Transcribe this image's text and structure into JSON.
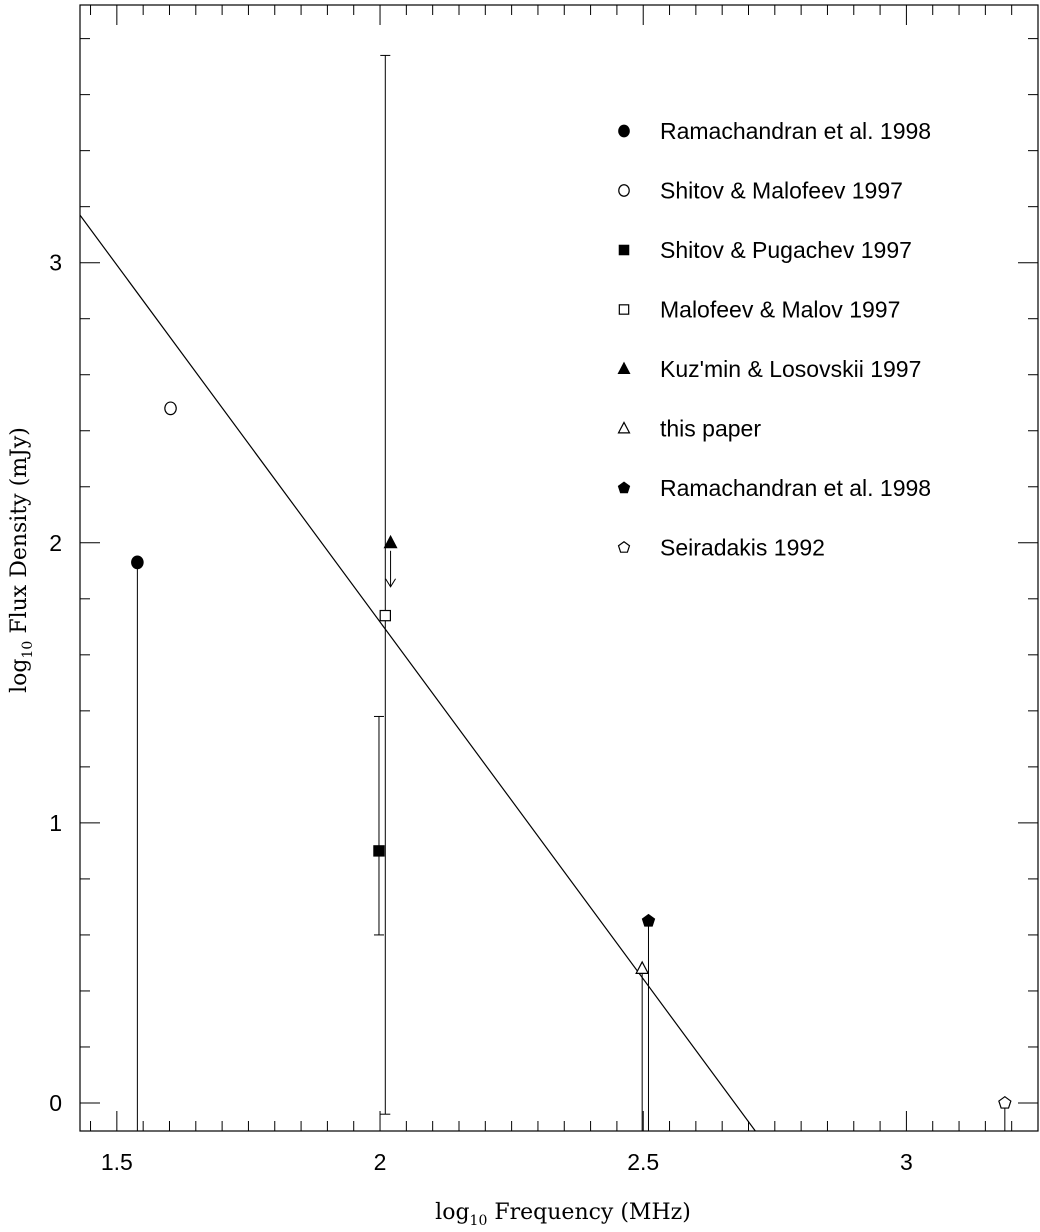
{
  "chart_data": {
    "type": "scatter",
    "xlabel": {
      "prefix": "log",
      "sub": "10",
      "rest": " Frequency (MHz)"
    },
    "ylabel": {
      "prefix": "log",
      "sub": "10",
      "rest": " Flux Density (mJy)"
    },
    "xlim": [
      1.43,
      3.25
    ],
    "ylim": [
      -0.1,
      3.92
    ],
    "xticks_major": [
      1.5,
      2,
      2.5,
      3
    ],
    "xtick_labels": [
      "1.5",
      "2",
      "2.5",
      "3"
    ],
    "yticks_major": [
      0,
      1,
      2,
      3
    ],
    "ytick_labels": [
      "0",
      "1",
      "2",
      "3"
    ],
    "xtick_minor_step": 0.05,
    "ytick_minor_step": 0.2,
    "grid": false,
    "legend_position": "top-right",
    "series": [
      {
        "name": "Ramachandran et al. 1998",
        "marker": "circle",
        "filled": true,
        "points": [
          {
            "x": 1.539,
            "y": 1.93,
            "yerr_low": -0.1,
            "yerr_high": 1.93,
            "lower_limit_bar": true
          }
        ]
      },
      {
        "name": "Shitov & Malofeev 1997",
        "marker": "circle",
        "filled": false,
        "points": [
          {
            "x": 1.602,
            "y": 2.48
          }
        ]
      },
      {
        "name": "Shitov & Pugachev 1997",
        "marker": "square",
        "filled": true,
        "points": [
          {
            "x": 1.998,
            "y": 0.9,
            "yerr_low": 0.6,
            "yerr_high": 1.38
          }
        ]
      },
      {
        "name": "Malofeev & Malov 1997",
        "marker": "square",
        "filled": false,
        "points": [
          {
            "x": 2.01,
            "y": 1.74,
            "yerr_low": -0.04,
            "yerr_high": 3.74
          }
        ]
      },
      {
        "name": "Kuz'min & Losovskii 1997",
        "marker": "triangle",
        "filled": true,
        "points": [
          {
            "x": 2.02,
            "y": 2.0,
            "upper_limit": true
          }
        ]
      },
      {
        "name": "this paper",
        "marker": "triangle",
        "filled": false,
        "points": [
          {
            "x": 2.498,
            "y": 0.48,
            "yerr_low": -0.1,
            "yerr_high": 0.48,
            "lower_limit_bar": true
          }
        ]
      },
      {
        "name": "Ramachandran et al. 1998",
        "marker": "pentagon",
        "filled": true,
        "points": [
          {
            "x": 2.51,
            "y": 0.65,
            "yerr_low": -0.1,
            "yerr_high": 0.65,
            "lower_limit_bar": true
          }
        ]
      },
      {
        "name": "Seiradakis 1992",
        "marker": "pentagon",
        "filled": false,
        "points": [
          {
            "x": 3.187,
            "y": 0.0,
            "yerr_low": -0.1,
            "yerr_high": 0.0,
            "lower_limit_bar": true
          }
        ]
      }
    ],
    "fit_line": {
      "x": [
        1.43,
        2.713
      ],
      "y": [
        3.17,
        -0.1
      ]
    }
  }
}
